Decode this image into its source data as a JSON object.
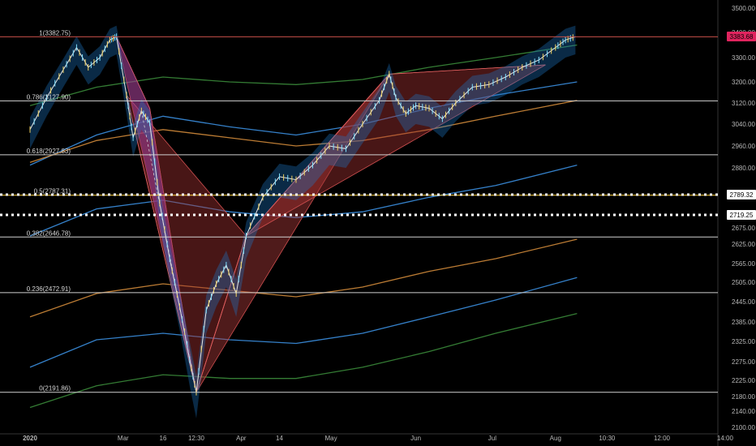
{
  "chart_data": {
    "type": "candlestick-with-overlays",
    "y_ticks": [
      3500,
      3400,
      3300,
      3200,
      3120,
      3040,
      2960,
      2880,
      2789.32,
      2719.25,
      2675,
      2625,
      2565,
      2505,
      2445,
      2385,
      2325,
      2275,
      2225,
      2180,
      2140,
      2100
    ],
    "x_ticks": [
      "2020",
      "Mar",
      "16",
      "12:30",
      "Apr",
      "14",
      "May",
      "Jun",
      "Jul",
      "Aug",
      "10:30",
      "12:00",
      "14:00"
    ],
    "x_tick_days": [
      0,
      56,
      80,
      100,
      127,
      150,
      181,
      232,
      278,
      316,
      347,
      380,
      418
    ],
    "last_day": 329,
    "fib_levels": [
      {
        "label": "1(3382.75)",
        "value": 3382.75,
        "color": "#c8504a"
      },
      {
        "label": "0.786(3127.90)",
        "value": 3127.9,
        "color": "#d0d0d0"
      },
      {
        "label": "0.618(2927.83)",
        "value": 2927.83,
        "color": "#d0d0d0"
      },
      {
        "label": "0.5(2787.31)",
        "value": 2787.31,
        "color": "#ffd23c"
      },
      {
        "label": "0.382(2646.78)",
        "value": 2646.78,
        "color": "#d0d0d0"
      },
      {
        "label": "0.236(2472.91)",
        "value": 2472.91,
        "color": "#d0d0d0"
      },
      {
        "label": "0(2191.86)",
        "value": 2191.86,
        "color": "#d0d0d0"
      }
    ],
    "dotted_levels": [
      2789.32,
      2719.25
    ],
    "price_badges": [
      {
        "text": "3383.68",
        "value": 3383.68,
        "color": "#e0245e"
      },
      {
        "text": "2789.32",
        "value": 2789.32,
        "color": "#ffffff"
      },
      {
        "text": "2719.25",
        "value": 2719.25,
        "color": "#ffffff"
      }
    ],
    "price_path": [
      [
        0,
        3020
      ],
      [
        10,
        3140
      ],
      [
        20,
        3250
      ],
      [
        28,
        3340
      ],
      [
        35,
        3260
      ],
      [
        42,
        3300
      ],
      [
        48,
        3370
      ],
      [
        52,
        3383
      ],
      [
        58,
        3150
      ],
      [
        62,
        2990
      ],
      [
        67,
        3090
      ],
      [
        72,
        3045
      ],
      [
        78,
        2760
      ],
      [
        84,
        2580
      ],
      [
        90,
        2430
      ],
      [
        96,
        2280
      ],
      [
        100,
        2192
      ],
      [
        106,
        2420
      ],
      [
        112,
        2500
      ],
      [
        118,
        2560
      ],
      [
        124,
        2470
      ],
      [
        130,
        2650
      ],
      [
        140,
        2780
      ],
      [
        150,
        2850
      ],
      [
        160,
        2840
      ],
      [
        170,
        2890
      ],
      [
        180,
        2960
      ],
      [
        190,
        2950
      ],
      [
        200,
        3040
      ],
      [
        210,
        3130
      ],
      [
        216,
        3232
      ],
      [
        220,
        3140
      ],
      [
        226,
        3080
      ],
      [
        232,
        3110
      ],
      [
        240,
        3100
      ],
      [
        248,
        3060
      ],
      [
        256,
        3120
      ],
      [
        266,
        3180
      ],
      [
        276,
        3190
      ],
      [
        286,
        3220
      ],
      [
        296,
        3260
      ],
      [
        306,
        3290
      ],
      [
        316,
        3340
      ],
      [
        322,
        3370
      ],
      [
        328,
        3383
      ]
    ],
    "patterns": [
      {
        "points": [
          [
            52,
            3383
          ],
          [
            72,
            3100
          ],
          [
            100,
            2192
          ],
          [
            130,
            2650
          ],
          [
            216,
            3232
          ]
        ],
        "color": "#b03c3c"
      },
      {
        "points": [
          [
            58,
            3150
          ],
          [
            100,
            2192
          ],
          [
            130,
            2650
          ],
          [
            216,
            3232
          ],
          [
            310,
            3270
          ]
        ],
        "color": "#a03030"
      }
    ],
    "moving_averages": [
      {
        "color": "#3b8fe0",
        "points": [
          [
            0,
            2890
          ],
          [
            40,
            3000
          ],
          [
            80,
            3070
          ],
          [
            120,
            3030
          ],
          [
            160,
            3000
          ],
          [
            200,
            3040
          ],
          [
            240,
            3100
          ],
          [
            280,
            3150
          ],
          [
            329,
            3200
          ]
        ]
      },
      {
        "color": "#d08a3a",
        "points": [
          [
            0,
            2900
          ],
          [
            40,
            2980
          ],
          [
            80,
            3020
          ],
          [
            120,
            2990
          ],
          [
            160,
            2960
          ],
          [
            200,
            2980
          ],
          [
            240,
            3020
          ],
          [
            280,
            3070
          ],
          [
            329,
            3130
          ]
        ]
      },
      {
        "color": "#3a8a3a",
        "points": [
          [
            0,
            3110
          ],
          [
            40,
            3180
          ],
          [
            80,
            3220
          ],
          [
            120,
            3200
          ],
          [
            160,
            3190
          ],
          [
            200,
            3210
          ],
          [
            240,
            3260
          ],
          [
            280,
            3300
          ],
          [
            329,
            3350
          ]
        ]
      },
      {
        "color": "#3b8fe0",
        "points": [
          [
            0,
            2650
          ],
          [
            40,
            2740
          ],
          [
            80,
            2770
          ],
          [
            120,
            2730
          ],
          [
            160,
            2710
          ],
          [
            200,
            2730
          ],
          [
            240,
            2780
          ],
          [
            280,
            2820
          ],
          [
            329,
            2890
          ]
        ]
      },
      {
        "color": "#d08a3a",
        "points": [
          [
            0,
            2400
          ],
          [
            40,
            2470
          ],
          [
            80,
            2500
          ],
          [
            120,
            2480
          ],
          [
            160,
            2460
          ],
          [
            200,
            2490
          ],
          [
            240,
            2540
          ],
          [
            280,
            2580
          ],
          [
            329,
            2640
          ]
        ]
      },
      {
        "color": "#3b8fe0",
        "points": [
          [
            0,
            2260
          ],
          [
            40,
            2330
          ],
          [
            80,
            2350
          ],
          [
            120,
            2330
          ],
          [
            160,
            2320
          ],
          [
            200,
            2350
          ],
          [
            240,
            2400
          ],
          [
            280,
            2450
          ],
          [
            329,
            2520
          ]
        ]
      },
      {
        "color": "#3a8a3a",
        "points": [
          [
            0,
            2150
          ],
          [
            40,
            2210
          ],
          [
            80,
            2240
          ],
          [
            120,
            2230
          ],
          [
            160,
            2230
          ],
          [
            200,
            2260
          ],
          [
            240,
            2300
          ],
          [
            280,
            2350
          ],
          [
            329,
            2410
          ]
        ]
      }
    ]
  }
}
